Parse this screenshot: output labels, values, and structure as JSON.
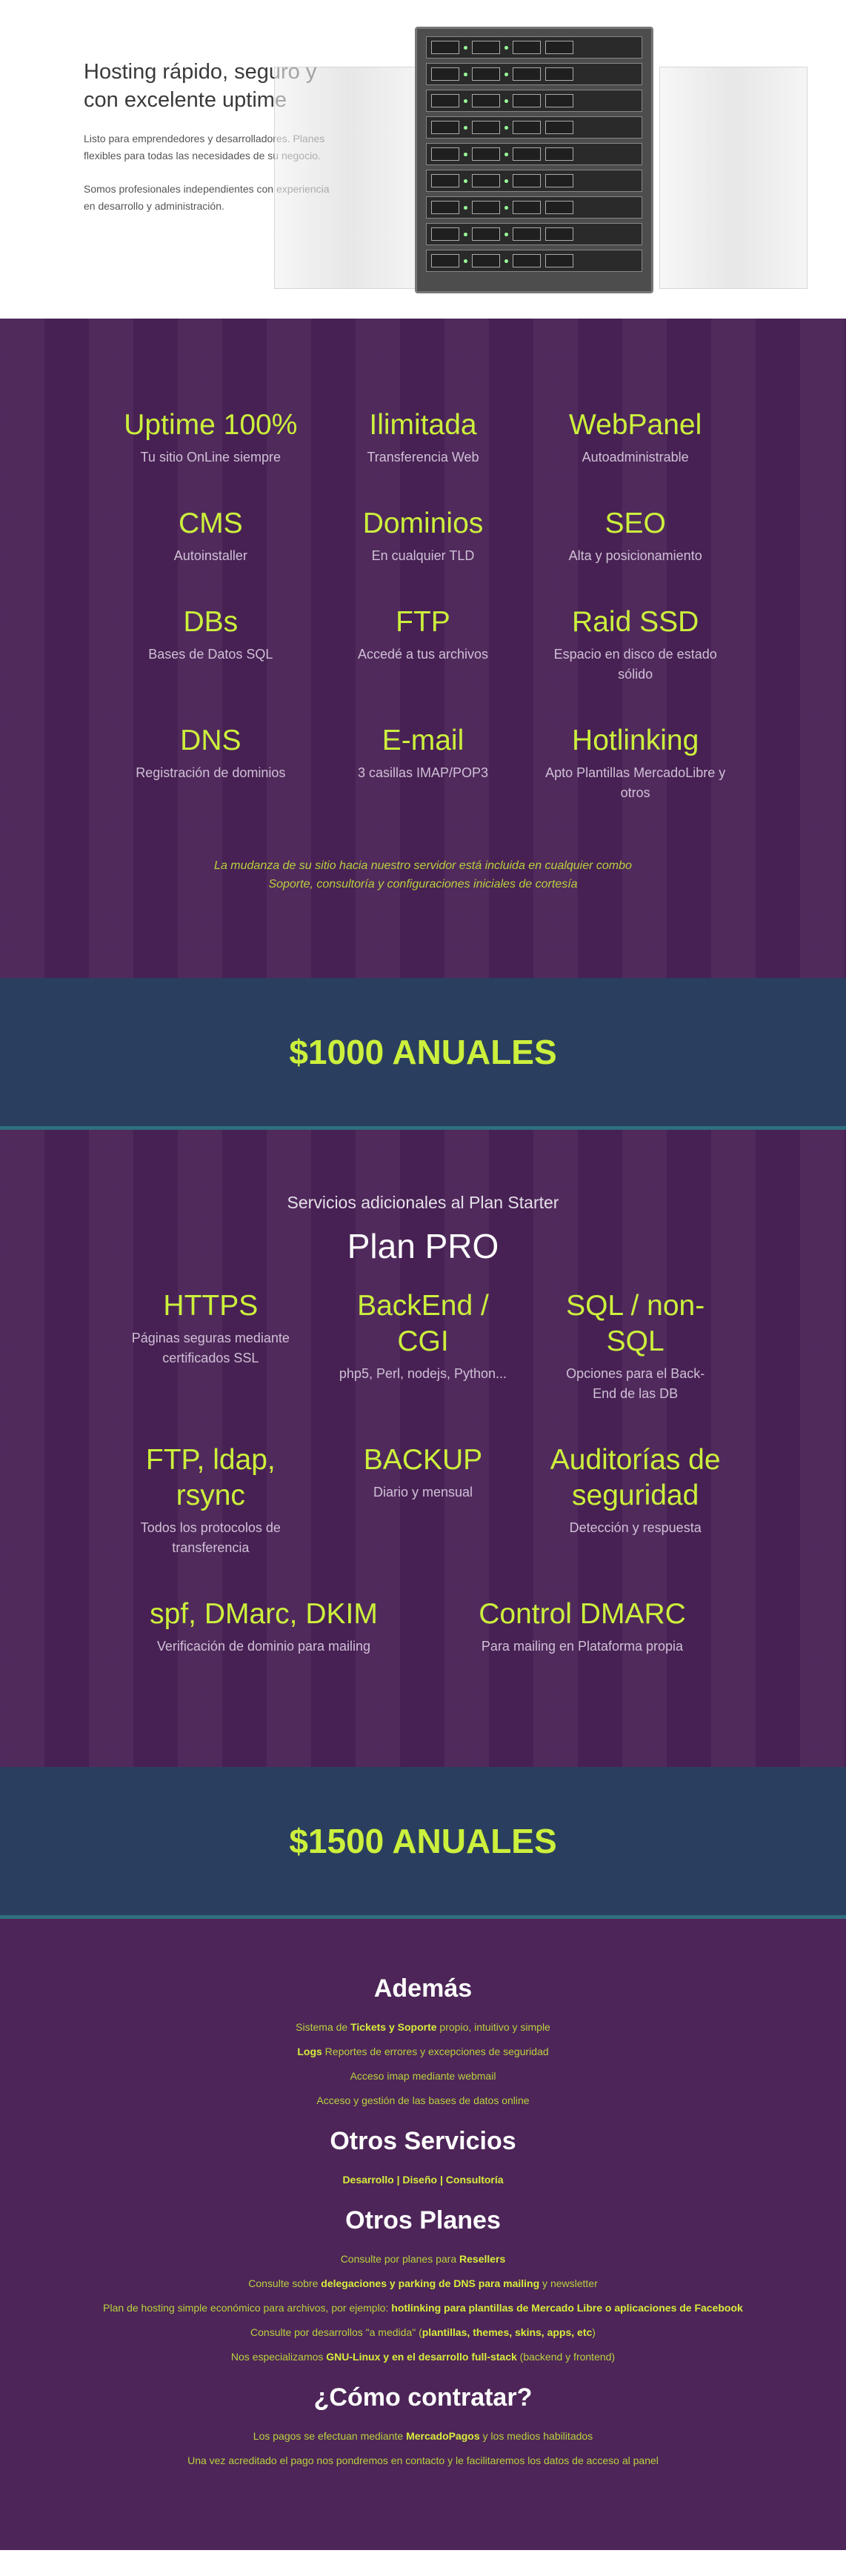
{
  "hero": {
    "title": "Hosting rápido, seguro y con excelente uptime",
    "paragraph1": "Listo para emprendedores y desarrolladores. Planes flexibles para todas las necesidades de su negocio.",
    "paragraph2": "Somos profesionales independientes con experiencia en desarrollo y administración."
  },
  "starter": {
    "features": [
      {
        "title": "Uptime 100%",
        "subtitle": "Tu sitio OnLine siempre"
      },
      {
        "title": "Ilimitada",
        "subtitle": "Transferencia Web"
      },
      {
        "title": "WebPanel",
        "subtitle": "Autoadministrable"
      },
      {
        "title": "CMS",
        "subtitle": "Autoinstaller"
      },
      {
        "title": "Dominios",
        "subtitle": "En cualquier TLD"
      },
      {
        "title": "SEO",
        "subtitle": "Alta y posicionamiento"
      },
      {
        "title": "DBs",
        "subtitle": "Bases de Datos SQL"
      },
      {
        "title": "FTP",
        "subtitle": "Accedé a tus archivos"
      },
      {
        "title": "Raid SSD",
        "subtitle": "Espacio en disco de estado sólido"
      },
      {
        "title": "DNS",
        "subtitle": "Registración de dominios"
      },
      {
        "title": "E-mail",
        "subtitle": "3 casillas IMAP/POP3"
      },
      {
        "title": "Hotlinking",
        "subtitle": "Apto Plantillas MercadoLibre y otros"
      }
    ],
    "note_line1": "La mudanza de su sitio hacia nuestro servidor está incluida en cualquier combo",
    "note_line2": "Soporte, consultoría y configuraciones iniciales de cortesía",
    "price": "$1000 ANUALES"
  },
  "pro": {
    "subtitle": "Servicios adicionales al Plan Starter",
    "title": "Plan PRO",
    "features": [
      {
        "title": "HTTPS",
        "subtitle": "Páginas seguras mediante certificados SSL"
      },
      {
        "title": "BackEnd / CGI",
        "subtitle": "php5, Perl, nodejs, Python..."
      },
      {
        "title": "SQL / non-SQL",
        "subtitle": "Opciones para el Back-End de las DB"
      },
      {
        "title": "FTP, ldap, rsync",
        "subtitle": "Todos los protocolos de transferencia"
      },
      {
        "title": "BACKUP",
        "subtitle": "Diario y mensual"
      },
      {
        "title": "Auditorías de seguridad",
        "subtitle": "Detección y respuesta"
      }
    ],
    "features2": [
      {
        "title": "spf, DMarc, DKIM",
        "subtitle": "Verificación de dominio para mailing"
      },
      {
        "title": "Control DMARC",
        "subtitle": "Para mailing en Plataforma propia"
      }
    ],
    "price": "$1500 ANUALES"
  },
  "extra": {
    "ademas_title": "Además",
    "ademas_1a": "Sistema de ",
    "ademas_1b": "Tickets y Soporte",
    "ademas_1c": " propio, intuitivo y simple",
    "ademas_2a": "Logs",
    "ademas_2b": " Reportes de errores y excepciones de seguridad",
    "ademas_3": "Acceso imap mediante webmail",
    "ademas_4": "Acceso y gestión de las bases de datos online",
    "otros_servicios_title": "Otros Servicios",
    "desarrollo": "Desarrollo",
    "diseno": "Diseño",
    "consultoria": "Consultoría",
    "sep": " | ",
    "otros_planes_title": "Otros Planes",
    "plan_1a": "Consulte por planes para ",
    "plan_1b": "Resellers",
    "plan_2a": "Consulte sobre ",
    "plan_2b": "delegaciones y parking de DNS para mailing",
    "plan_2c": " y newsletter",
    "plan_3a": "Plan de hosting simple económico para archivos, por ejemplo: ",
    "plan_3b": "hotlinking para plantillas de Mercado Libre o aplicaciones de Facebook",
    "plan_4a": "Consulte por desarrollos \"a medida\" (",
    "plan_4b": "plantillas, themes, skins, apps, etc",
    "plan_4c": ")",
    "plan_5a": "Nos especializamos ",
    "plan_5b": "GNU-Linux y en el desarrollo full-stack",
    "plan_5c": " (backend y frontend)",
    "contratar_title": "¿Cómo contratar?",
    "contratar_1a": "Los pagos se efectuan mediante ",
    "contratar_1b": "MercadoPagos",
    "contratar_1c": " y los medios habilitados",
    "contratar_2": "Una vez acreditado el pago nos pondremos en contacto y le facilitaremos los datos de acceso al panel"
  },
  "colors": {
    "accent": "#ccf03c",
    "purple": "#4b2357",
    "price_band": "#2a3f5f"
  }
}
